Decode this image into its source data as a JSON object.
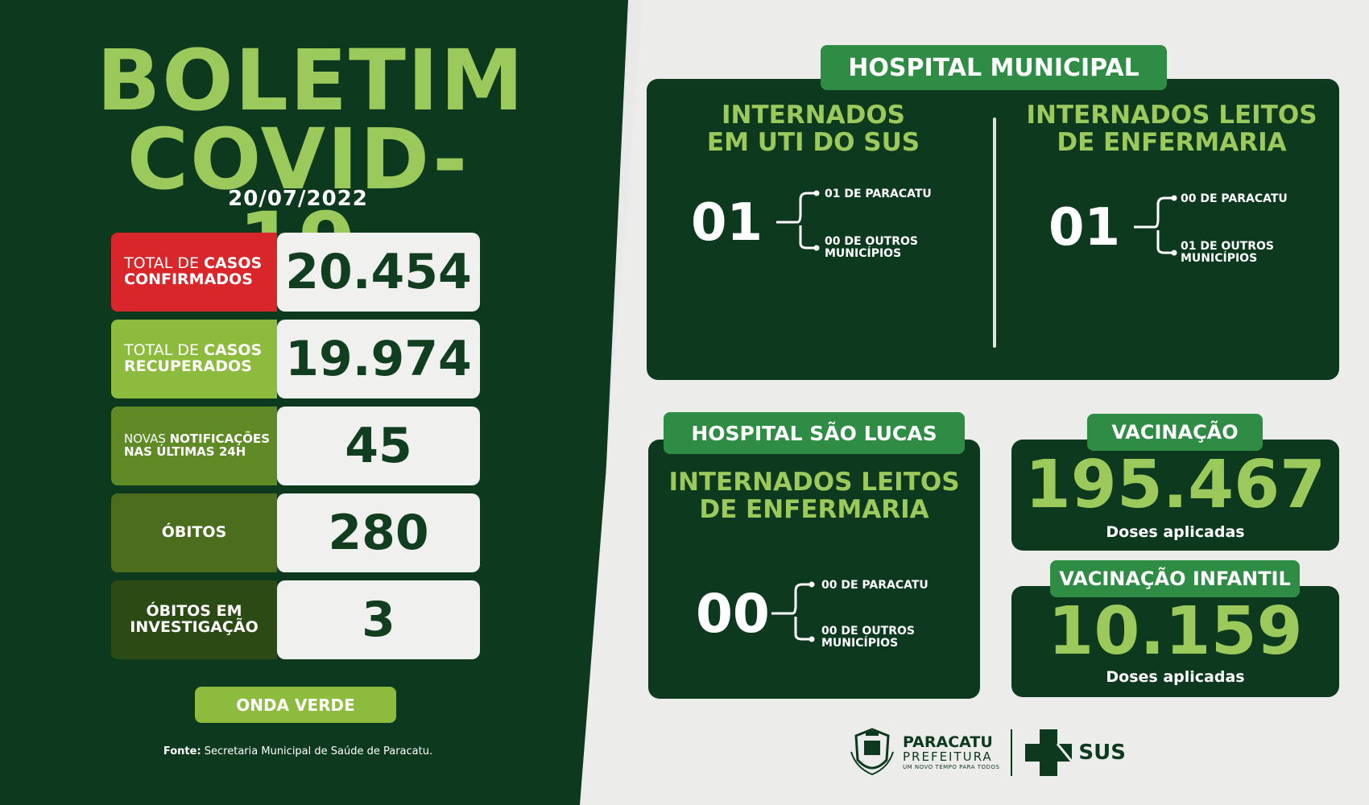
{
  "header": {
    "title_line1": "BOLETIM",
    "title_line2": "COVID-19",
    "date": "20/07/2022"
  },
  "stats": [
    {
      "label_pre": "TOTAL DE ",
      "label_bold": "CASOS",
      "label_line2": "CONFIRMADOS",
      "value": "20.454"
    },
    {
      "label_pre": "TOTAL DE ",
      "label_bold": "CASOS",
      "label_line2": "RECUPERADOS",
      "value": "19.974"
    },
    {
      "label_pre": "NOVAS ",
      "label_bold": "NOTIFICAÇÕES",
      "label_line2": "NAS ÚLTIMAS 24H",
      "value": "45"
    },
    {
      "label_line1": "ÓBITOS",
      "value": "280"
    },
    {
      "label_line1": "ÓBITOS EM",
      "label_line2": "INVESTIGAÇÃO",
      "value": "3"
    }
  ],
  "wave_button": "ONDA VERDE",
  "source": {
    "label": "Fonte:",
    "text": " Secretaria Municipal de Saúde de Paracatu."
  },
  "hospital_municipal": {
    "tag": "HOSPITAL MUNICIPAL",
    "uti": {
      "head_line1": "INTERNADOS",
      "head_line2": "EM UTI DO SUS",
      "total": "01",
      "item1": "01 DE PARACATU",
      "item2_line1": "00 DE OUTROS",
      "item2_line2": "MUNICÍPIOS"
    },
    "enfermaria": {
      "head_line1": "INTERNADOS LEITOS",
      "head_line2": "DE ENFERMARIA",
      "total": "01",
      "item1": "00 DE PARACATU",
      "item2_line1": "01 DE OUTROS",
      "item2_line2": "MUNICÍPIOS"
    }
  },
  "hospital_sao_lucas": {
    "tag": "HOSPITAL SÃO LUCAS",
    "head_line1": "INTERNADOS LEITOS",
    "head_line2": "DE ENFERMARIA",
    "total": "00",
    "item1": "00 DE PARACATU",
    "item2_line1": "00 DE OUTROS",
    "item2_line2": "MUNICÍPIOS"
  },
  "vacinacao": {
    "tag": "VACINAÇÃO",
    "value": "195.467",
    "sub": "Doses aplicadas"
  },
  "vacinacao_infantil": {
    "tag": "VACINAÇÃO INFANTIL",
    "value": "10.159",
    "sub": "Doses aplicadas"
  },
  "footer": {
    "pref_line1": "PARACATU",
    "pref_line2": "PREFEITURA",
    "pref_line3": "UM NOVO TEMPO PARA TODOS",
    "sus": "SUS"
  },
  "colors": {
    "dark_green": "#0d3a1e",
    "light_green": "#9cc95c",
    "tag_green": "#2f8c45",
    "red": "#d9262a"
  }
}
